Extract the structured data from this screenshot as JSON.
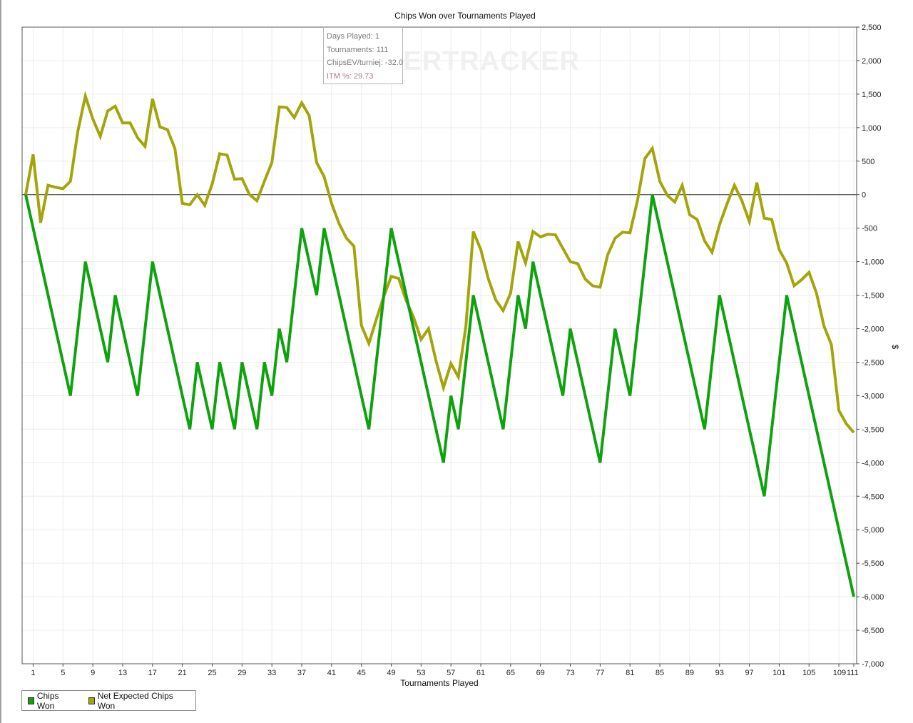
{
  "chart_data": {
    "type": "line",
    "title": "Chips Won over Tournaments Played",
    "xlabel": "Tournaments Played",
    "ylabel": "$",
    "ylim": [
      -7000,
      2500
    ],
    "y_ticks": [
      2500,
      2000,
      1500,
      1000,
      500,
      0,
      -500,
      -1000,
      -1500,
      -2000,
      -2500,
      -3000,
      -3500,
      -4000,
      -4500,
      -5000,
      -5500,
      -6000,
      -6500,
      -7000
    ],
    "y_tick_labels": [
      "2,500",
      "2,000",
      "1,500",
      "1,000",
      "500",
      "0",
      "-500",
      "-1,000",
      "-1,500",
      "-2,000",
      "-2,500",
      "-3,000",
      "-3,500",
      "-4,000",
      "-4,500",
      "-5,000",
      "-5,500",
      "-6,000",
      "-6,500",
      "-7,000"
    ],
    "x_ticks": [
      1,
      5,
      9,
      13,
      17,
      21,
      25,
      29,
      33,
      37,
      41,
      45,
      49,
      53,
      57,
      61,
      65,
      69,
      73,
      77,
      81,
      85,
      89,
      93,
      97,
      101,
      105,
      109,
      111
    ],
    "x_tick_labels": [
      "1",
      "5",
      "9",
      "13",
      "17",
      "21",
      "25",
      "29",
      "33",
      "37",
      "41",
      "45",
      "49",
      "53",
      "57",
      "61",
      "65",
      "69",
      "73",
      "77",
      "81",
      "85",
      "89",
      "93",
      "97",
      "101",
      "105",
      "109",
      "111"
    ],
    "grid": true,
    "legend_position": "bottom-left",
    "series": [
      {
        "name": "Chips Won",
        "color": "#0ea30e",
        "points": [
          [
            0,
            0
          ],
          [
            6,
            -3000
          ],
          [
            8,
            -1000
          ],
          [
            11,
            -2500
          ],
          [
            12,
            -1500
          ],
          [
            15,
            -3000
          ],
          [
            17,
            -1000
          ],
          [
            22,
            -3500
          ],
          [
            23,
            -2500
          ],
          [
            25,
            -3500
          ],
          [
            26,
            -2500
          ],
          [
            28,
            -3500
          ],
          [
            29,
            -2500
          ],
          [
            31,
            -3500
          ],
          [
            32,
            -2500
          ],
          [
            33,
            -3000
          ],
          [
            34,
            -2000
          ],
          [
            35,
            -2500
          ],
          [
            37,
            -500
          ],
          [
            39,
            -1500
          ],
          [
            40,
            -500
          ],
          [
            46,
            -3500
          ],
          [
            49,
            -500
          ],
          [
            56,
            -4000
          ],
          [
            57,
            -3000
          ],
          [
            58,
            -3500
          ],
          [
            60,
            -1500
          ],
          [
            64,
            -3500
          ],
          [
            66,
            -1500
          ],
          [
            67,
            -2000
          ],
          [
            68,
            -1000
          ],
          [
            72,
            -3000
          ],
          [
            73,
            -2000
          ],
          [
            77,
            -4000
          ],
          [
            79,
            -2000
          ],
          [
            81,
            -3000
          ],
          [
            84,
            0
          ],
          [
            91,
            -3500
          ],
          [
            93,
            -1500
          ],
          [
            99,
            -4500
          ],
          [
            102,
            -1500
          ],
          [
            111,
            -6000
          ]
        ]
      },
      {
        "name": "Net Expected Chips Won",
        "color": "#a3a50a",
        "points": [
          [
            0,
            0
          ],
          [
            1,
            600
          ],
          [
            2,
            -420
          ],
          [
            3,
            140
          ],
          [
            4,
            110
          ],
          [
            5,
            90
          ],
          [
            6,
            200
          ],
          [
            7,
            950
          ],
          [
            8,
            1470
          ],
          [
            9,
            1130
          ],
          [
            10,
            870
          ],
          [
            11,
            1250
          ],
          [
            12,
            1320
          ],
          [
            13,
            1070
          ],
          [
            14,
            1070
          ],
          [
            15,
            850
          ],
          [
            16,
            720
          ],
          [
            17,
            1430
          ],
          [
            18,
            1010
          ],
          [
            19,
            970
          ],
          [
            20,
            690
          ],
          [
            21,
            -130
          ],
          [
            22,
            -150
          ],
          [
            23,
            0
          ],
          [
            24,
            -160
          ],
          [
            25,
            160
          ],
          [
            26,
            610
          ],
          [
            27,
            590
          ],
          [
            28,
            230
          ],
          [
            29,
            240
          ],
          [
            30,
            0
          ],
          [
            31,
            -90
          ],
          [
            32,
            200
          ],
          [
            33,
            480
          ],
          [
            34,
            1310
          ],
          [
            35,
            1300
          ],
          [
            36,
            1150
          ],
          [
            37,
            1370
          ],
          [
            38,
            1180
          ],
          [
            39,
            480
          ],
          [
            40,
            270
          ],
          [
            41,
            -130
          ],
          [
            42,
            -430
          ],
          [
            43,
            -650
          ],
          [
            44,
            -770
          ],
          [
            45,
            -1950
          ],
          [
            46,
            -2220
          ],
          [
            47,
            -1860
          ],
          [
            48,
            -1520
          ],
          [
            49,
            -1220
          ],
          [
            50,
            -1250
          ],
          [
            51,
            -1580
          ],
          [
            52,
            -1830
          ],
          [
            53,
            -2160
          ],
          [
            54,
            -2000
          ],
          [
            55,
            -2480
          ],
          [
            56,
            -2880
          ],
          [
            57,
            -2520
          ],
          [
            58,
            -2720
          ],
          [
            59,
            -1970
          ],
          [
            60,
            -550
          ],
          [
            61,
            -820
          ],
          [
            62,
            -1250
          ],
          [
            63,
            -1570
          ],
          [
            64,
            -1730
          ],
          [
            65,
            -1470
          ],
          [
            66,
            -700
          ],
          [
            67,
            -1020
          ],
          [
            68,
            -550
          ],
          [
            69,
            -630
          ],
          [
            70,
            -590
          ],
          [
            71,
            -600
          ],
          [
            72,
            -800
          ],
          [
            73,
            -1000
          ],
          [
            74,
            -1030
          ],
          [
            75,
            -1260
          ],
          [
            76,
            -1360
          ],
          [
            77,
            -1380
          ],
          [
            78,
            -900
          ],
          [
            79,
            -650
          ],
          [
            80,
            -560
          ],
          [
            81,
            -570
          ],
          [
            82,
            -90
          ],
          [
            83,
            540
          ],
          [
            84,
            690
          ],
          [
            85,
            200
          ],
          [
            86,
            -10
          ],
          [
            87,
            -110
          ],
          [
            88,
            140
          ],
          [
            89,
            -300
          ],
          [
            90,
            -370
          ],
          [
            91,
            -690
          ],
          [
            92,
            -860
          ],
          [
            93,
            -450
          ],
          [
            94,
            -140
          ],
          [
            95,
            140
          ],
          [
            96,
            -90
          ],
          [
            97,
            -400
          ],
          [
            98,
            180
          ],
          [
            99,
            -350
          ],
          [
            100,
            -370
          ],
          [
            101,
            -820
          ],
          [
            102,
            -1020
          ],
          [
            103,
            -1360
          ],
          [
            104,
            -1270
          ],
          [
            105,
            -1160
          ],
          [
            106,
            -1470
          ],
          [
            107,
            -1960
          ],
          [
            108,
            -2240
          ],
          [
            109,
            -3220
          ],
          [
            110,
            -3420
          ],
          [
            111,
            -3550
          ]
        ]
      }
    ]
  },
  "tooltip": {
    "days_played": "Days Played: 1",
    "tournaments": "Tournaments: 111",
    "chips_ev": "ChipsEV/turniej: -32.0",
    "itm": "ITM %: 29.73"
  },
  "watermark": "POKERTRACKER",
  "legend": [
    {
      "label": "Chips Won",
      "color": "#0ea30e"
    },
    {
      "label": "Net Expected Chips Won",
      "color": "#a3a50a"
    }
  ]
}
